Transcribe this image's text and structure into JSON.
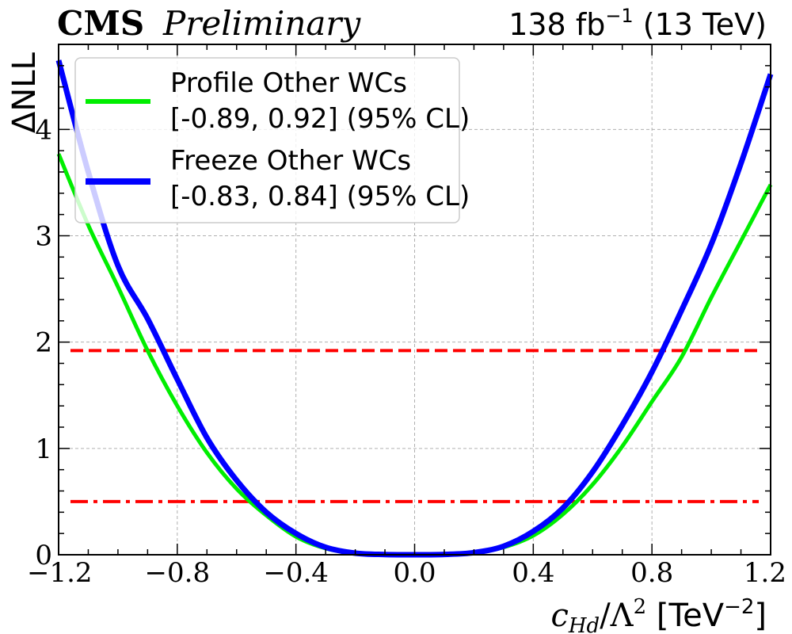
{
  "header": {
    "experiment": "CMS",
    "status": "Preliminary",
    "lumi_prefix": "138 fb",
    "lumi_exponent": "−1",
    "lumi_suffix": " (13 TeV)"
  },
  "chart_data": {
    "type": "line",
    "xlabel_main": "c",
    "xlabel_sub": "Hd",
    "xlabel_mid": "/Λ",
    "xlabel_pow": "2",
    "xlabel_unit_open": " [TeV",
    "xlabel_unit_pow": "−2",
    "xlabel_unit_close": "]",
    "ylabel": "ΔNLL",
    "xlim": [
      -1.2,
      1.2
    ],
    "ylim": [
      0,
      4.8
    ],
    "x_ticks": [
      -1.2,
      -0.8,
      -0.4,
      0.0,
      0.4,
      0.8,
      1.2
    ],
    "x_tick_labels": [
      "−1.2",
      "−0.8",
      "−0.4",
      "0.0",
      "0.4",
      "0.8",
      "1.2"
    ],
    "y_ticks": [
      0,
      1,
      2,
      3,
      4
    ],
    "y_tick_labels": [
      "0",
      "1",
      "2",
      "3",
      "4"
    ],
    "grid": true,
    "legend_position": "top-left",
    "series": [
      {
        "legend_line1": "Profile Other WCs",
        "legend_line2": "[-0.89, 0.92] (95% CL)",
        "color": "#00ee00",
        "x": [
          -1.2,
          -1.1,
          -1.0,
          -0.9,
          -0.8,
          -0.7,
          -0.6,
          -0.5,
          -0.4,
          -0.3,
          -0.2,
          -0.1,
          0.0,
          0.1,
          0.2,
          0.3,
          0.4,
          0.5,
          0.6,
          0.7,
          0.8,
          0.9,
          1.0,
          1.1,
          1.2
        ],
        "y": [
          3.77,
          3.1,
          2.52,
          1.92,
          1.4,
          0.96,
          0.62,
          0.37,
          0.17,
          0.06,
          0.015,
          0.002,
          0.0,
          0.003,
          0.02,
          0.07,
          0.18,
          0.38,
          0.66,
          1.02,
          1.44,
          1.86,
          2.42,
          2.95,
          3.48
        ]
      },
      {
        "legend_line1": "Freeze Other WCs",
        "legend_line2": "[-0.83, 0.84] (95% CL)",
        "color": "#0000ff",
        "x": [
          -1.2,
          -1.1,
          -1.0,
          -0.9,
          -0.8,
          -0.7,
          -0.6,
          -0.5,
          -0.4,
          -0.3,
          -0.2,
          -0.1,
          0.0,
          0.1,
          0.2,
          0.3,
          0.4,
          0.5,
          0.6,
          0.7,
          0.8,
          0.9,
          1.0,
          1.1,
          1.2
        ],
        "y": [
          4.65,
          3.6,
          2.72,
          2.22,
          1.65,
          1.1,
          0.7,
          0.4,
          0.2,
          0.07,
          0.015,
          0.002,
          0.0,
          0.003,
          0.02,
          0.08,
          0.22,
          0.44,
          0.78,
          1.22,
          1.72,
          2.3,
          2.92,
          3.68,
          4.52
        ]
      }
    ],
    "reference_lines": [
      {
        "y": 1.92,
        "style": "dashed",
        "color": "#ff0000"
      },
      {
        "y": 0.5,
        "style": "dashdot",
        "color": "#ff0000"
      }
    ]
  }
}
